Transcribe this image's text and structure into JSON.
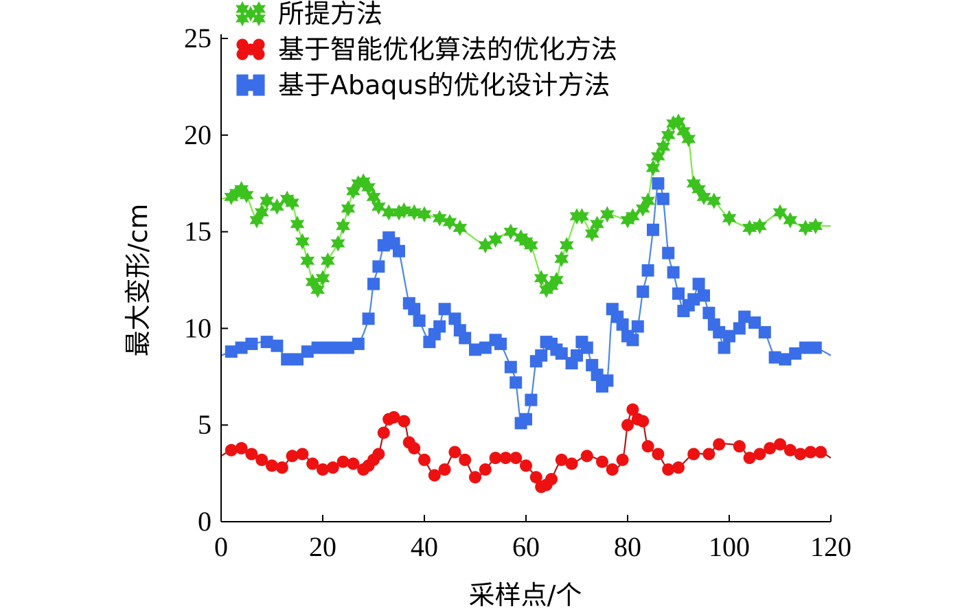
{
  "chart_data": {
    "type": "line",
    "title": "",
    "xlabel": "采样点/个",
    "ylabel": "最大变形/cm",
    "xlim": [
      0,
      120
    ],
    "ylim": [
      0,
      25
    ],
    "xticks": [
      "0",
      "20",
      "40",
      "60",
      "80",
      "100",
      "120"
    ],
    "yticks": [
      "0",
      "5",
      "10",
      "15",
      "20",
      "25"
    ],
    "grid": false,
    "legend_position": "top-left",
    "series": [
      {
        "name": "所提方法",
        "color": "#3cc21e",
        "line_color": "#7ee84a",
        "marker": "star",
        "x": [
          0,
          2,
          3,
          4,
          5,
          7,
          8,
          9,
          11,
          13,
          14,
          15,
          16,
          17,
          18,
          19,
          20,
          21,
          23,
          24,
          25,
          26,
          27,
          28,
          29,
          30,
          31,
          33,
          35,
          36,
          38,
          40,
          43,
          45,
          47,
          52,
          54,
          57,
          59,
          60,
          61,
          63,
          64,
          65,
          66,
          67,
          68,
          70,
          71,
          73,
          74,
          76,
          80,
          81,
          83,
          84,
          85,
          86,
          87,
          88,
          89,
          90,
          91,
          92,
          93,
          94,
          95,
          97,
          100,
          104,
          106,
          110,
          112,
          115,
          117,
          120
        ],
        "y": [
          16.7,
          16.8,
          17.0,
          17.2,
          16.9,
          15.6,
          16.0,
          16.6,
          16.3,
          16.7,
          16.5,
          15.4,
          14.5,
          13.5,
          12.4,
          12.0,
          12.6,
          13.5,
          14.4,
          15.3,
          16.2,
          17.1,
          17.5,
          17.6,
          17.3,
          16.8,
          16.3,
          16.0,
          16.0,
          16.1,
          16.0,
          15.9,
          15.7,
          15.5,
          15.2,
          14.3,
          14.6,
          15.0,
          14.7,
          14.5,
          14.3,
          12.6,
          12.0,
          12.2,
          12.5,
          13.6,
          14.3,
          15.8,
          15.8,
          14.9,
          15.4,
          15.9,
          15.6,
          15.8,
          16.2,
          16.6,
          18.3,
          18.9,
          19.4,
          20.0,
          20.6,
          20.7,
          20.2,
          19.8,
          17.5,
          17.2,
          16.8,
          16.6,
          15.7,
          15.2,
          15.3,
          16.0,
          15.6,
          15.2,
          15.3,
          15.3
        ]
      },
      {
        "name": "基于智能优化算法的优化方法",
        "color": "#ee1111",
        "line_color": "#b01818",
        "marker": "circle",
        "x": [
          0,
          2,
          4,
          6,
          8,
          10,
          12,
          14,
          16,
          18,
          20,
          22,
          24,
          26,
          28,
          29,
          30,
          31,
          32,
          33,
          34,
          36,
          37,
          38,
          40,
          42,
          44,
          46,
          48,
          50,
          52,
          54,
          56,
          58,
          60,
          62,
          63,
          64,
          65,
          67,
          69,
          72,
          75,
          77,
          79,
          80,
          81,
          82,
          83,
          84,
          86,
          88,
          90,
          93,
          96,
          98,
          102,
          104,
          106,
          108,
          110,
          112,
          114,
          116,
          118,
          120
        ],
        "y": [
          3.4,
          3.7,
          3.8,
          3.5,
          3.2,
          2.9,
          2.8,
          3.4,
          3.5,
          3.0,
          2.7,
          2.8,
          3.1,
          3.0,
          2.7,
          2.9,
          3.2,
          3.5,
          4.6,
          5.3,
          5.4,
          5.2,
          4.1,
          3.8,
          3.2,
          2.4,
          2.7,
          3.6,
          3.2,
          2.3,
          2.7,
          3.3,
          3.3,
          3.3,
          2.9,
          2.3,
          1.8,
          1.9,
          2.2,
          3.2,
          3.0,
          3.4,
          3.1,
          2.7,
          3.2,
          5.0,
          5.8,
          5.3,
          5.2,
          3.9,
          3.5,
          2.7,
          2.8,
          3.5,
          3.5,
          4.0,
          3.9,
          3.3,
          3.5,
          3.8,
          4.0,
          3.7,
          3.5,
          3.6,
          3.6,
          3.3
        ]
      },
      {
        "name": "基于Abaqus的优化设计方法",
        "color": "#3a6ee8",
        "line_color": "#4a86ea",
        "marker": "square",
        "x": [
          0,
          2,
          4,
          6,
          9,
          11,
          13,
          15,
          17,
          19,
          21,
          23,
          25,
          27,
          29,
          30,
          31,
          32,
          33,
          34,
          35,
          37,
          38,
          39,
          41,
          42,
          43,
          44,
          46,
          47,
          48,
          50,
          52,
          54,
          55,
          57,
          58,
          59,
          60,
          61,
          62,
          63,
          64,
          65,
          66,
          67,
          69,
          70,
          71,
          72,
          73,
          74,
          75,
          76,
          77,
          78,
          79,
          80,
          81,
          82,
          83,
          84,
          85,
          86,
          87,
          88,
          89,
          90,
          91,
          92,
          93,
          94,
          95,
          96,
          97,
          98,
          99,
          100,
          102,
          103,
          105,
          107,
          109,
          111,
          113,
          115,
          117,
          120
        ],
        "y": [
          8.6,
          8.8,
          9.0,
          9.2,
          9.3,
          9.1,
          8.4,
          8.4,
          8.8,
          9.0,
          9.0,
          9.0,
          9.0,
          9.2,
          10.5,
          12.3,
          13.2,
          14.3,
          14.7,
          14.4,
          14.0,
          11.3,
          11.0,
          10.4,
          9.3,
          9.7,
          10.1,
          11.0,
          10.5,
          9.9,
          9.5,
          8.9,
          9.0,
          9.4,
          9.2,
          8.0,
          7.2,
          5.1,
          5.3,
          6.3,
          8.3,
          8.6,
          9.3,
          9.2,
          8.9,
          8.7,
          8.2,
          8.6,
          9.3,
          9.0,
          8.1,
          7.6,
          7.0,
          7.3,
          11.0,
          10.6,
          10.2,
          9.6,
          9.4,
          10.1,
          11.9,
          13.0,
          15.1,
          17.5,
          16.7,
          13.9,
          12.9,
          11.8,
          10.9,
          11.2,
          11.5,
          12.3,
          11.7,
          10.8,
          10.2,
          9.8,
          9.0,
          9.6,
          10.0,
          10.6,
          10.3,
          9.8,
          8.5,
          8.4,
          8.7,
          9.0,
          9.0,
          8.6
        ]
      }
    ]
  }
}
